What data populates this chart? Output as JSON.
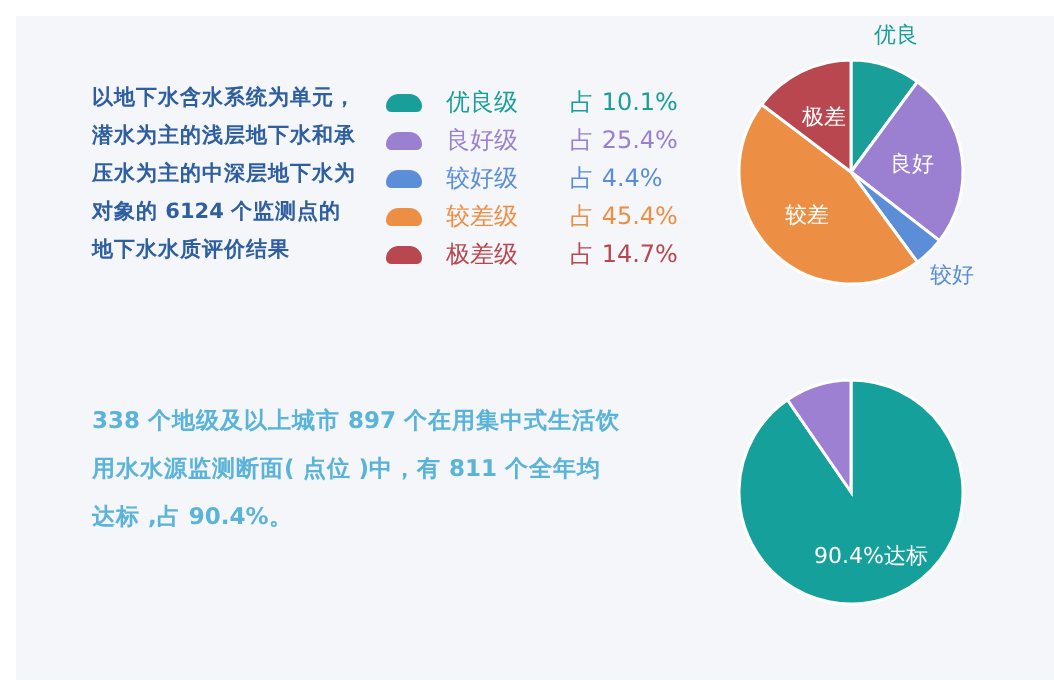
{
  "chart_data": [
    {
      "type": "pie",
      "categories": [
        "优良级",
        "良好级",
        "较好级",
        "较差级",
        "极差级"
      ],
      "values": [
        10.1,
        25.4,
        4.4,
        45.4,
        14.7
      ],
      "colors": [
        "#1a9e9a",
        "#9b7fd0",
        "#5b8ed6",
        "#ec8f45",
        "#b8474f"
      ],
      "value_labels": [
        "占 10.1%",
        "占 25.4%",
        "占 4.4%",
        "占 45.4%",
        "占 14.7%"
      ],
      "legend": "left",
      "annotations": [
        "以地下水含水系统为单元，潜水为主的浅层地下水和承压水为主的中深层地下水为对象的 6124 个监测点的地下水水质评价结果",
        {
          "text": "优良",
          "x": "优良级"
        },
        {
          "text": "良好",
          "x": "良好级"
        },
        {
          "text": "较好",
          "x": "较好级"
        },
        {
          "text": "较差",
          "x": "较差级"
        },
        {
          "text": "极差",
          "x": "极差级"
        }
      ]
    },
    {
      "type": "pie",
      "categories": [
        "90.4%达标",
        null
      ],
      "values": [
        90.4,
        9.6
      ],
      "colors": [
        "#16a09c",
        "#9d80d1"
      ],
      "annotations": [
        "338 个地级及以上城市 897 个在用集中式生活饮用水水源监测断面( 点位 )中，有 811 个全年均达标 ,占 90.4%。"
      ]
    }
  ]
}
